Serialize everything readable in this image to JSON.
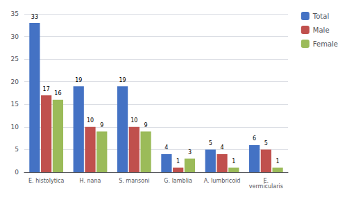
{
  "chart_data": {
    "type": "bar",
    "categories": [
      "E. histolytica",
      "H. nana",
      "S. mansoni",
      "G. lamblia",
      "A. lumbricoid",
      "E.\nvermicularis"
    ],
    "series": [
      {
        "name": "Total",
        "color": "#4472C4",
        "values": [
          33,
          19,
          19,
          4,
          5,
          6
        ]
      },
      {
        "name": "Male",
        "color": "#C0504D",
        "values": [
          17,
          10,
          10,
          1,
          4,
          5
        ]
      },
      {
        "name": "Female",
        "color": "#9BBB59",
        "values": [
          16,
          9,
          9,
          3,
          1,
          1
        ]
      }
    ],
    "ylim": [
      0,
      35
    ],
    "yticks": [
      0,
      5,
      10,
      15,
      20,
      25,
      30,
      35
    ],
    "grid": true,
    "legend": "right",
    "data_labels": true
  }
}
